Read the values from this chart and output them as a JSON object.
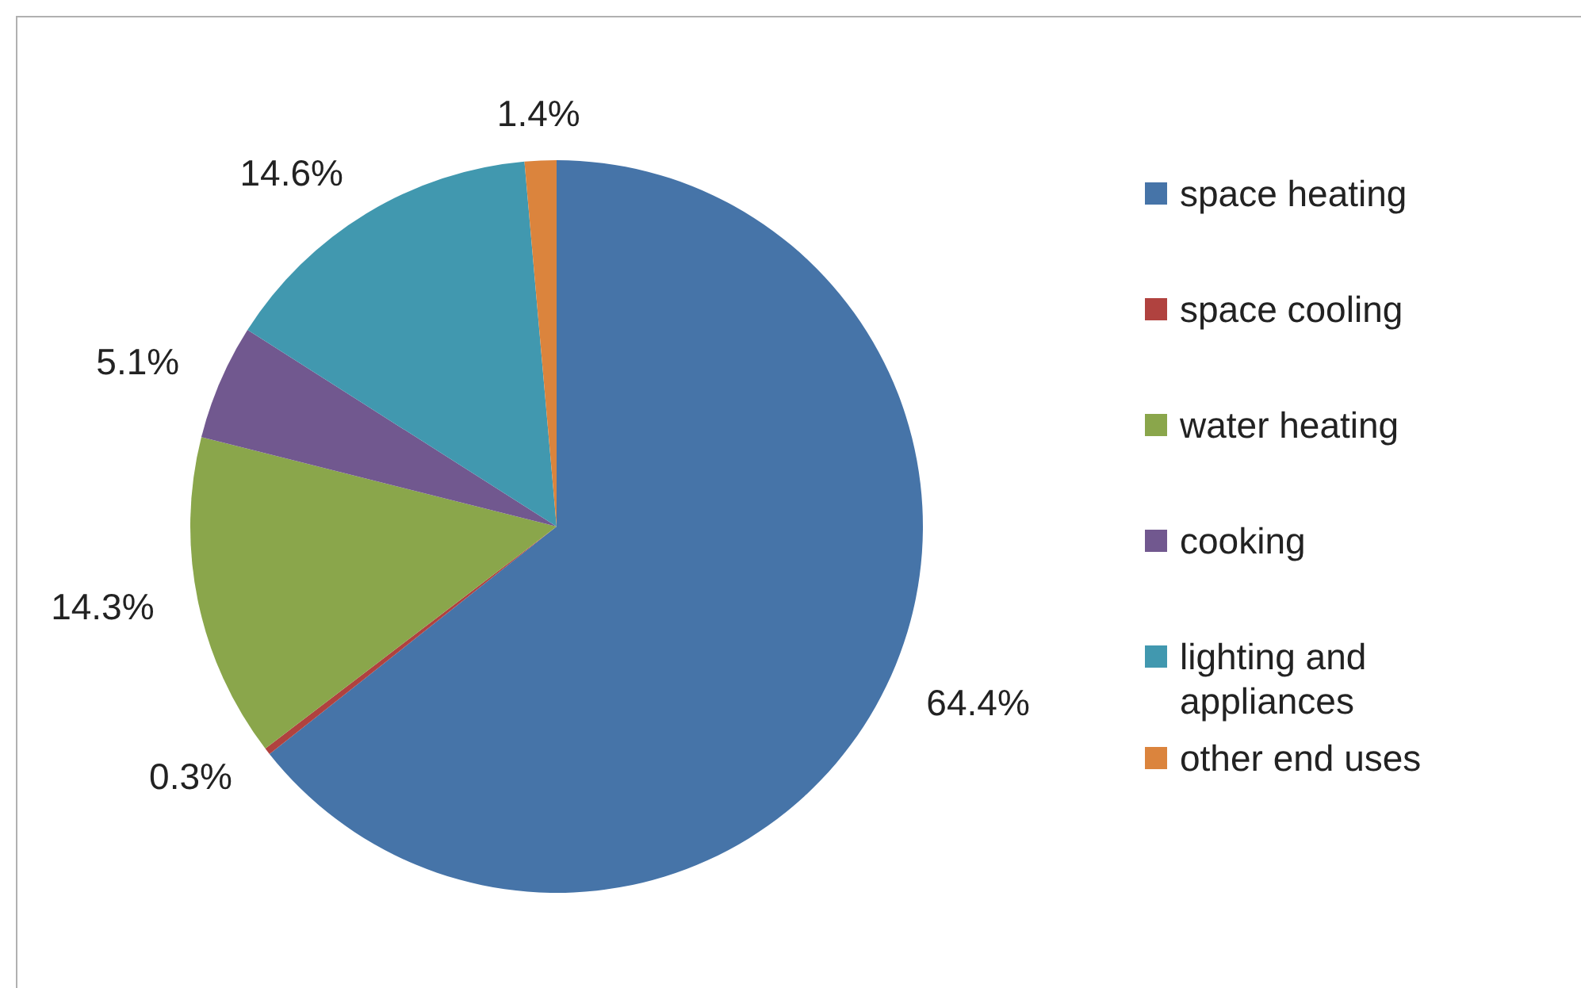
{
  "chart_data": {
    "type": "pie",
    "categories": [
      "space heating",
      "space cooling",
      "water heating",
      "cooking",
      "lighting and appliances",
      "other end uses"
    ],
    "values": [
      64.4,
      0.3,
      14.3,
      5.1,
      14.6,
      1.4
    ],
    "value_labels": [
      "64.4%",
      "0.3%",
      "14.3%",
      "5.1%",
      "14.6%",
      "1.4%"
    ],
    "colors": [
      "#4674a8",
      "#b0423f",
      "#8aa64b",
      "#71588f",
      "#4198af",
      "#db843d"
    ],
    "legend": "right"
  }
}
